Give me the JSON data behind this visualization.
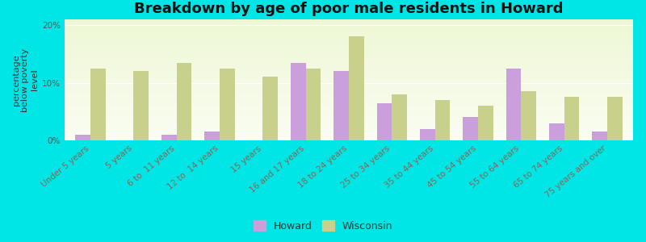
{
  "title": "Breakdown by age of poor male residents in Howard",
  "ylabel": "percentage\nbelow poverty\nlevel",
  "categories": [
    "Under 5 years",
    "5 years",
    "6 to  11 years",
    "12 to  14 years",
    "15 years",
    "16 and 17 years",
    "18 to 24 years",
    "25 to 34 years",
    "35 to 44 years",
    "45 to 54 years",
    "55 to 64 years",
    "65 to 74 years",
    "75 years and over"
  ],
  "howard_values": [
    1.0,
    0.0,
    1.0,
    1.5,
    0.0,
    13.5,
    12.0,
    6.5,
    2.0,
    4.0,
    12.5,
    3.0,
    1.5
  ],
  "wisconsin_values": [
    12.5,
    12.0,
    13.5,
    12.5,
    11.0,
    12.5,
    18.0,
    8.0,
    7.0,
    6.0,
    8.5,
    7.5,
    7.5
  ],
  "howard_color": "#c9a0dc",
  "wisconsin_color": "#c8d08c",
  "background_color": "#00e5e5",
  "ylim": [
    0,
    21
  ],
  "yticks": [
    0,
    10,
    20
  ],
  "ytick_labels": [
    "0%",
    "10%",
    "20%"
  ],
  "bar_width": 0.35,
  "title_fontsize": 13,
  "axis_label_fontsize": 8,
  "tick_fontsize": 7.5,
  "legend_fontsize": 9
}
